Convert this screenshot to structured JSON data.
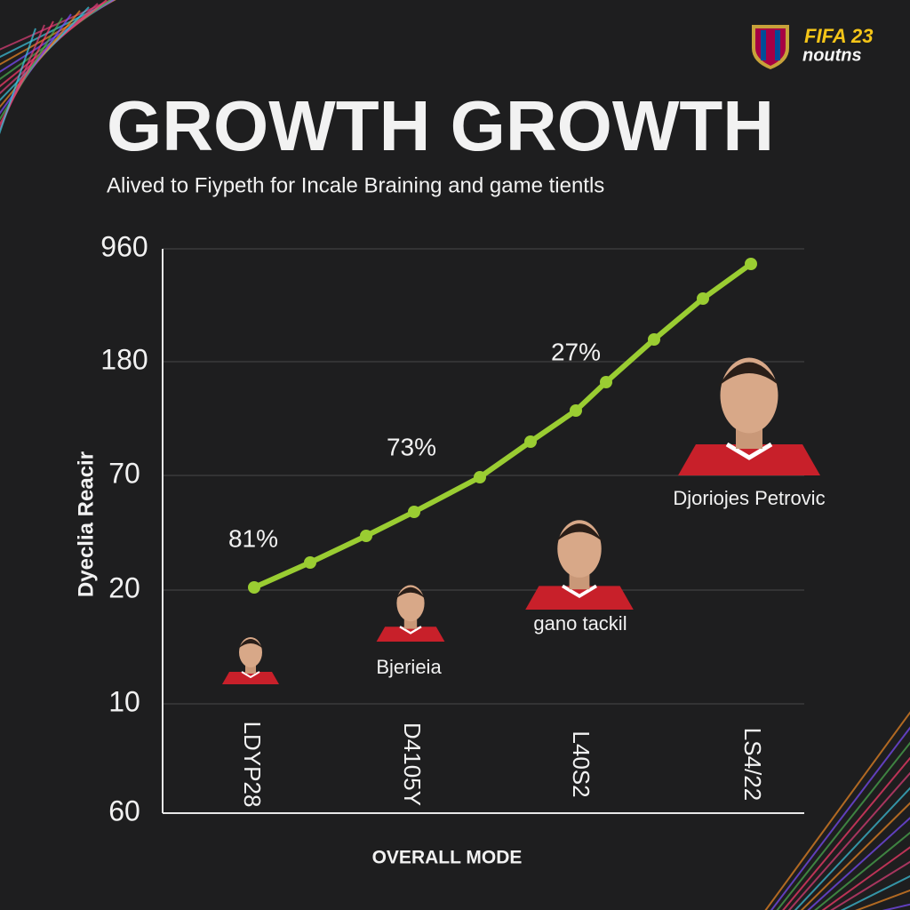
{
  "header": {
    "title": "GROWTH GROWTH",
    "subtitle": "Alived to Fiypeth for Incale Braining and game tientls",
    "logo_top": "FIFA 23",
    "logo_bottom": "noutns"
  },
  "plot": {
    "y_axis_title": "Dyeclia Reacir",
    "x_axis_title": "OVERALL MODE",
    "y_labels": [
      "960",
      "180",
      "70",
      "20",
      "10",
      "60"
    ],
    "x_labels": [
      "LDYP28",
      "D4105Y",
      "L40S2",
      "LS4/22"
    ],
    "annotations": [
      "81%",
      "73%",
      "27%"
    ],
    "players": [
      "Bjerieia",
      "gano tackil",
      "Djoriojes Petrovic"
    ]
  }
}
